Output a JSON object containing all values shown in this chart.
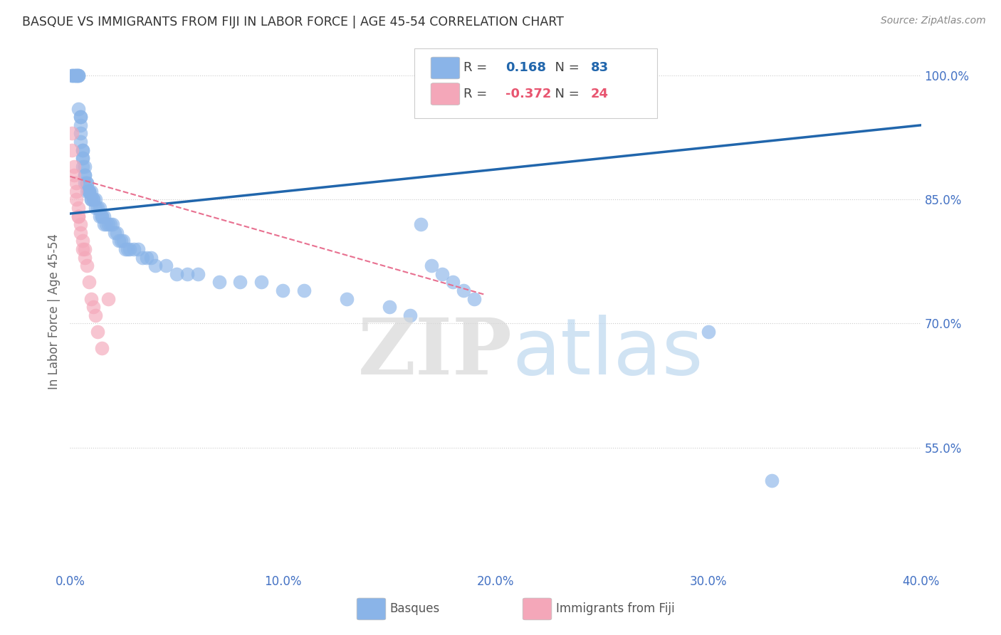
{
  "title": "BASQUE VS IMMIGRANTS FROM FIJI IN LABOR FORCE | AGE 45-54 CORRELATION CHART",
  "source": "Source: ZipAtlas.com",
  "ylabel": "In Labor Force | Age 45-54",
  "legend_blue_r": "0.168",
  "legend_blue_n": "83",
  "legend_pink_r": "-0.372",
  "legend_pink_n": "24",
  "xmin": 0.0,
  "xmax": 0.4,
  "ymin": 0.4,
  "ymax": 1.03,
  "yticks": [
    0.55,
    0.7,
    0.85,
    1.0
  ],
  "ytick_labels": [
    "55.0%",
    "70.0%",
    "85.0%",
    "100.0%"
  ],
  "xticks": [
    0.0,
    0.1,
    0.2,
    0.3,
    0.4
  ],
  "xtick_labels": [
    "0.0%",
    "10.0%",
    "20.0%",
    "30.0%",
    "40.0%"
  ],
  "blue_x": [
    0.001,
    0.001,
    0.002,
    0.002,
    0.003,
    0.003,
    0.003,
    0.004,
    0.004,
    0.004,
    0.004,
    0.005,
    0.005,
    0.005,
    0.005,
    0.005,
    0.006,
    0.006,
    0.006,
    0.006,
    0.006,
    0.007,
    0.007,
    0.007,
    0.007,
    0.008,
    0.008,
    0.008,
    0.009,
    0.009,
    0.009,
    0.01,
    0.01,
    0.01,
    0.011,
    0.011,
    0.012,
    0.012,
    0.013,
    0.014,
    0.014,
    0.015,
    0.015,
    0.016,
    0.016,
    0.017,
    0.018,
    0.019,
    0.02,
    0.021,
    0.022,
    0.023,
    0.024,
    0.025,
    0.026,
    0.027,
    0.028,
    0.03,
    0.032,
    0.034,
    0.036,
    0.038,
    0.04,
    0.045,
    0.05,
    0.055,
    0.06,
    0.07,
    0.08,
    0.09,
    0.1,
    0.11,
    0.13,
    0.15,
    0.16,
    0.165,
    0.17,
    0.175,
    0.18,
    0.185,
    0.19,
    0.3,
    0.33
  ],
  "blue_y": [
    1.0,
    1.0,
    1.0,
    1.0,
    1.0,
    1.0,
    1.0,
    1.0,
    1.0,
    1.0,
    0.96,
    0.95,
    0.95,
    0.94,
    0.93,
    0.92,
    0.91,
    0.91,
    0.9,
    0.9,
    0.89,
    0.89,
    0.88,
    0.88,
    0.87,
    0.87,
    0.87,
    0.86,
    0.86,
    0.86,
    0.86,
    0.86,
    0.85,
    0.85,
    0.85,
    0.85,
    0.85,
    0.84,
    0.84,
    0.84,
    0.83,
    0.83,
    0.83,
    0.83,
    0.82,
    0.82,
    0.82,
    0.82,
    0.82,
    0.81,
    0.81,
    0.8,
    0.8,
    0.8,
    0.79,
    0.79,
    0.79,
    0.79,
    0.79,
    0.78,
    0.78,
    0.78,
    0.77,
    0.77,
    0.76,
    0.76,
    0.76,
    0.75,
    0.75,
    0.75,
    0.74,
    0.74,
    0.73,
    0.72,
    0.71,
    0.82,
    0.77,
    0.76,
    0.75,
    0.74,
    0.73,
    0.69,
    0.51
  ],
  "pink_x": [
    0.001,
    0.001,
    0.002,
    0.002,
    0.003,
    0.003,
    0.003,
    0.004,
    0.004,
    0.004,
    0.005,
    0.005,
    0.006,
    0.006,
    0.007,
    0.007,
    0.008,
    0.009,
    0.01,
    0.011,
    0.012,
    0.013,
    0.015,
    0.018
  ],
  "pink_y": [
    0.93,
    0.91,
    0.89,
    0.88,
    0.87,
    0.86,
    0.85,
    0.84,
    0.83,
    0.83,
    0.82,
    0.81,
    0.8,
    0.79,
    0.79,
    0.78,
    0.77,
    0.75,
    0.73,
    0.72,
    0.71,
    0.69,
    0.67,
    0.73
  ],
  "blue_line_x0": 0.0,
  "blue_line_x1": 0.4,
  "blue_line_y0": 0.833,
  "blue_line_y1": 0.94,
  "pink_line_x0": 0.0,
  "pink_line_x1": 0.195,
  "pink_line_y0": 0.878,
  "pink_line_y1": 0.735,
  "scatter_blue_color": "#8ab4e8",
  "scatter_pink_color": "#f4a7b9",
  "line_blue_color": "#2166ac",
  "line_pink_color": "#e87090",
  "background_color": "#ffffff",
  "grid_color": "#cccccc",
  "title_color": "#333333",
  "axis_label_color": "#4472c4",
  "ylabel_color": "#666666"
}
